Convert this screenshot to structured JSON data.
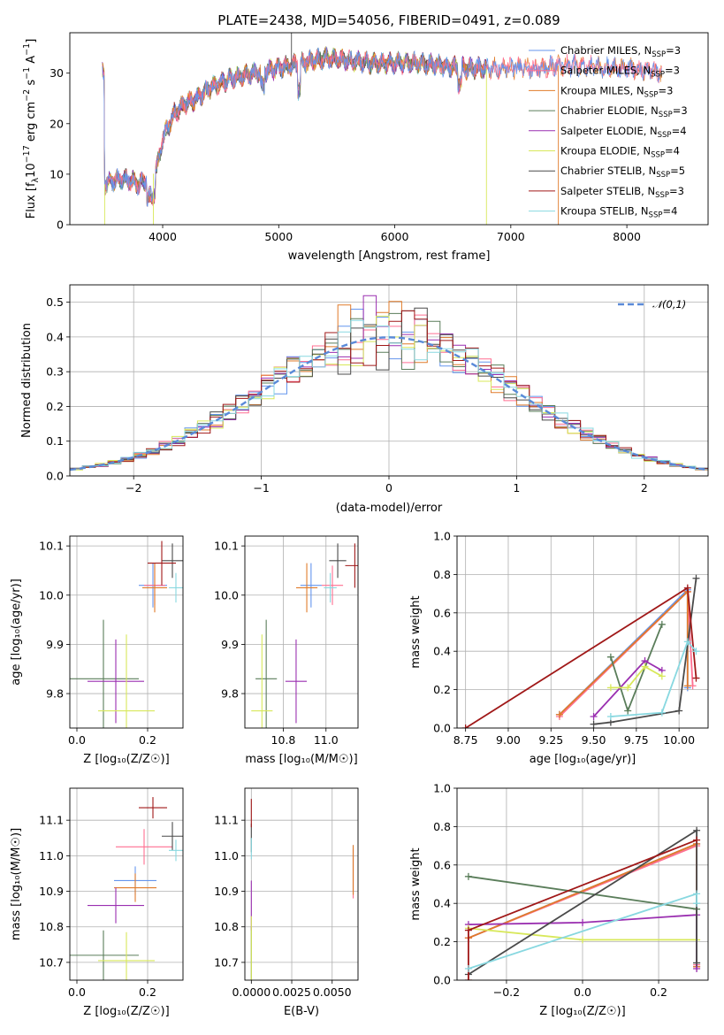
{
  "figure_title": "PLATE=2438, MJD=54056, FIBERID=0491, z=0.089",
  "colors": {
    "Chabrier MILES": "#6495ed",
    "Salpeter MILES": "#ff6f91",
    "Kroupa MILES": "#e07b2a",
    "Chabrier ELODIE": "#5a7d5a",
    "Salpeter ELODIE": "#9a2fb0",
    "Kroupa ELODIE": "#d8e85a",
    "Chabrier STELIB": "#4a4a4a",
    "Salpeter STELIB": "#a01818",
    "Kroupa STELIB": "#88d8e0"
  },
  "chart_data": [
    {
      "id": "spectrum",
      "type": "line",
      "title": "PLATE=2438, MJD=54056, FIBERID=0491, z=0.089",
      "xlabel": "wavelength [Angstrom, rest frame]",
      "ylabel": "Flux [f_λ 10^-17 erg cm^-2 s^-1 A^-1]",
      "xlim": [
        3200,
        8700
      ],
      "ylim": [
        0,
        38
      ],
      "xticks": [
        4000,
        5000,
        6000,
        7000,
        8000
      ],
      "yticks": [
        0,
        10,
        20,
        30
      ],
      "grid": false,
      "legend_position": "right",
      "legend": [
        {
          "name": "Chabrier MILES",
          "label": "Chabrier MILES, N",
          "sub": "SSP",
          "n": "=3"
        },
        {
          "name": "Salpeter MILES",
          "label": "Salpeter MILES, N",
          "sub": "SSP",
          "n": "=3"
        },
        {
          "name": "Kroupa MILES",
          "label": "Kroupa MILES, N",
          "sub": "SSP",
          "n": "=3"
        },
        {
          "name": "Chabrier ELODIE",
          "label": "Chabrier ELODIE, N",
          "sub": "SSP",
          "n": "=3"
        },
        {
          "name": "Salpeter ELODIE",
          "label": "Salpeter ELODIE, N",
          "sub": "SSP",
          "n": "=4"
        },
        {
          "name": "Kroupa ELODIE",
          "label": "Kroupa ELODIE, N",
          "sub": "SSP",
          "n": "=4"
        },
        {
          "name": "Chabrier STELIB",
          "label": "Chabrier STELIB, N",
          "sub": "SSP",
          "n": "=5"
        },
        {
          "name": "Salpeter STELIB",
          "label": "Salpeter STELIB, N",
          "sub": "SSP",
          "n": "=3"
        },
        {
          "name": "Kroupa STELIB",
          "label": "Kroupa STELIB, N",
          "sub": "SSP",
          "n": "=4"
        }
      ],
      "continuum": [
        [
          3500,
          8
        ],
        [
          3600,
          9
        ],
        [
          3700,
          9
        ],
        [
          3800,
          8
        ],
        [
          3900,
          9.5
        ],
        [
          3950,
          11
        ],
        [
          4000,
          17
        ],
        [
          4100,
          22
        ],
        [
          4200,
          24
        ],
        [
          4300,
          25
        ],
        [
          4400,
          27
        ],
        [
          4500,
          28
        ],
        [
          4600,
          29
        ],
        [
          4700,
          29.5
        ],
        [
          4800,
          30
        ],
        [
          4900,
          30.5
        ],
        [
          5000,
          31
        ],
        [
          5200,
          32
        ],
        [
          5400,
          33
        ],
        [
          5600,
          32.5
        ],
        [
          5800,
          32
        ],
        [
          6000,
          32
        ],
        [
          6200,
          32
        ],
        [
          6400,
          31.5
        ],
        [
          6600,
          31
        ],
        [
          6800,
          31
        ],
        [
          7000,
          31
        ],
        [
          7200,
          31
        ],
        [
          7400,
          31.5
        ],
        [
          7600,
          31.5
        ],
        [
          7800,
          31
        ],
        [
          8000,
          31
        ],
        [
          8200,
          30.5
        ],
        [
          8300,
          30
        ]
      ],
      "spikes": [
        [
          3500,
          0
        ],
        [
          3920,
          0
        ],
        [
          5110,
          38
        ],
        [
          6790,
          0
        ],
        [
          7410,
          0
        ]
      ]
    },
    {
      "id": "residuals",
      "type": "histogram",
      "xlabel": "(data-model)/error",
      "ylabel": "Normed distribution",
      "xlim": [
        -2.5,
        2.5
      ],
      "ylim": [
        0,
        0.55
      ],
      "xticks": [
        -2,
        -1,
        0,
        1,
        2
      ],
      "yticks": [
        0.0,
        0.1,
        0.2,
        0.3,
        0.4,
        0.5
      ],
      "grid": true,
      "bin_width": 0.1,
      "legend": [
        {
          "name": "𝒩(0,1)",
          "style": "dashed",
          "color": "#5a8ad8"
        }
      ],
      "normal": {
        "mean": 0,
        "sigma": 1
      }
    },
    {
      "id": "age-vs-Z",
      "type": "errorbar",
      "xlabel": "Z [log10(Z/Z☉)]",
      "ylabel": "age [log10(age/yr)]",
      "xlim": [
        -0.02,
        0.3
      ],
      "ylim": [
        9.73,
        10.12
      ],
      "xticks": [
        0.0,
        0.2
      ],
      "yticks": [
        9.8,
        9.9,
        10.0,
        10.1
      ],
      "grid": true,
      "points": [
        {
          "series": "Chabrier MILES",
          "x": 0.215,
          "xerr": 0.04,
          "y": 10.02,
          "yerr": 0.045
        },
        {
          "series": "Salpeter MILES",
          "x": 0.22,
          "xerr": 0.03,
          "y": 10.02,
          "yerr": 0.04
        },
        {
          "series": "Kroupa MILES",
          "x": 0.22,
          "xerr": 0.035,
          "y": 10.015,
          "yerr": 0.05
        },
        {
          "series": "Chabrier ELODIE",
          "x": 0.075,
          "xerr": 0.1,
          "y": 9.83,
          "yerr": 0.12
        },
        {
          "series": "Salpeter ELODIE",
          "x": 0.11,
          "xerr": 0.08,
          "y": 9.825,
          "yerr": 0.085
        },
        {
          "series": "Kroupa ELODIE",
          "x": 0.14,
          "xerr": 0.08,
          "y": 9.765,
          "yerr": 0.155
        },
        {
          "series": "Chabrier STELIB",
          "x": 0.27,
          "xerr": 0.03,
          "y": 10.07,
          "yerr": 0.035
        },
        {
          "series": "Salpeter STELIB",
          "x": 0.24,
          "xerr": 0.04,
          "y": 10.065,
          "yerr": 0.045
        },
        {
          "series": "Kroupa STELIB",
          "x": 0.28,
          "xerr": 0.02,
          "y": 10.015,
          "yerr": 0.03
        }
      ]
    },
    {
      "id": "age-vs-mass",
      "type": "errorbar",
      "xlabel": "mass [log10(M/M☉)]",
      "ylabel": "",
      "xlim": [
        10.62,
        11.15
      ],
      "ylim": [
        9.73,
        10.12
      ],
      "xticks": [
        10.8,
        11.0
      ],
      "yticks": [
        9.8,
        9.9,
        10.0,
        10.1
      ],
      "grid": true,
      "points": [
        {
          "series": "Chabrier MILES",
          "x": 10.93,
          "xerr": 0.05,
          "y": 10.02,
          "yerr": 0.045
        },
        {
          "series": "Salpeter MILES",
          "x": 11.03,
          "xerr": 0.05,
          "y": 10.02,
          "yerr": 0.04
        },
        {
          "series": "Kroupa MILES",
          "x": 10.91,
          "xerr": 0.05,
          "y": 10.015,
          "yerr": 0.05
        },
        {
          "series": "Chabrier ELODIE",
          "x": 10.72,
          "xerr": 0.05,
          "y": 9.83,
          "yerr": 0.12
        },
        {
          "series": "Salpeter ELODIE",
          "x": 10.86,
          "xerr": 0.05,
          "y": 9.825,
          "yerr": 0.085
        },
        {
          "series": "Kroupa ELODIE",
          "x": 10.7,
          "xerr": 0.05,
          "y": 9.765,
          "yerr": 0.155
        },
        {
          "series": "Chabrier STELIB",
          "x": 11.055,
          "xerr": 0.04,
          "y": 10.07,
          "yerr": 0.035
        },
        {
          "series": "Salpeter STELIB",
          "x": 11.135,
          "xerr": 0.045,
          "y": 10.06,
          "yerr": 0.045
        },
        {
          "series": "Kroupa STELIB",
          "x": 11.02,
          "xerr": 0.03,
          "y": 10.015,
          "yerr": 0.03
        }
      ]
    },
    {
      "id": "weight-vs-age",
      "type": "line",
      "xlabel": "age [log10(age/yr)]",
      "ylabel": "mass weight",
      "xlim": [
        8.7,
        10.17
      ],
      "ylim": [
        0,
        1.0
      ],
      "xticks": [
        8.75,
        9.0,
        9.25,
        9.5,
        9.75,
        10.0
      ],
      "yticks": [
        0.0,
        0.2,
        0.4,
        0.6,
        0.8,
        1.0
      ],
      "grid": true,
      "series": [
        {
          "name": "Chabrier MILES",
          "points": [
            [
              9.3,
              0.07
            ],
            [
              10.05,
              0.72
            ],
            [
              10.05,
              0.21
            ]
          ]
        },
        {
          "name": "Salpeter MILES",
          "points": [
            [
              9.3,
              0.06
            ],
            [
              10.05,
              0.71
            ],
            [
              10.08,
              0.22
            ]
          ]
        },
        {
          "name": "Kroupa MILES",
          "points": [
            [
              9.3,
              0.07
            ],
            [
              10.05,
              0.71
            ],
            [
              10.05,
              0.22
            ]
          ]
        },
        {
          "name": "Chabrier ELODIE",
          "points": [
            [
              9.6,
              0.37
            ],
            [
              9.7,
              0.09
            ],
            [
              9.9,
              0.54
            ]
          ]
        },
        {
          "name": "Salpeter ELODIE",
          "points": [
            [
              9.5,
              0.06
            ],
            [
              9.8,
              0.35
            ],
            [
              9.9,
              0.3
            ]
          ]
        },
        {
          "name": "Kroupa ELODIE",
          "points": [
            [
              9.6,
              0.21
            ],
            [
              9.7,
              0.21
            ],
            [
              9.8,
              0.32
            ],
            [
              9.9,
              0.27
            ]
          ]
        },
        {
          "name": "Chabrier STELIB",
          "points": [
            [
              9.5,
              0.02
            ],
            [
              9.6,
              0.03
            ],
            [
              10.0,
              0.09
            ],
            [
              10.1,
              0.78
            ]
          ]
        },
        {
          "name": "Salpeter STELIB",
          "points": [
            [
              8.75,
              0.0
            ],
            [
              10.05,
              0.73
            ],
            [
              10.1,
              0.26
            ]
          ]
        },
        {
          "name": "Kroupa STELIB",
          "points": [
            [
              9.6,
              0.06
            ],
            [
              9.9,
              0.08
            ],
            [
              10.05,
              0.45
            ],
            [
              10.1,
              0.4
            ]
          ]
        }
      ]
    },
    {
      "id": "mass-vs-Z",
      "type": "errorbar",
      "xlabel": "Z [log10(Z/Z☉)]",
      "ylabel": "mass [log10(M/M☉)]",
      "xlim": [
        -0.02,
        0.3
      ],
      "ylim": [
        10.65,
        11.19
      ],
      "xticks": [
        0.0,
        0.2
      ],
      "yticks": [
        10.7,
        10.8,
        10.9,
        11.0,
        11.1
      ],
      "grid": true,
      "points": [
        {
          "series": "Chabrier MILES",
          "x": 0.165,
          "xerr": 0.06,
          "y": 10.93,
          "yerr": 0.04
        },
        {
          "series": "Salpeter MILES",
          "x": 0.19,
          "xerr": 0.08,
          "y": 11.025,
          "yerr": 0.05
        },
        {
          "series": "Kroupa MILES",
          "x": 0.165,
          "xerr": 0.06,
          "y": 10.91,
          "yerr": 0.04
        },
        {
          "series": "Chabrier ELODIE",
          "x": 0.075,
          "xerr": 0.1,
          "y": 10.72,
          "yerr": 0.07
        },
        {
          "series": "Salpeter ELODIE",
          "x": 0.11,
          "xerr": 0.08,
          "y": 10.86,
          "yerr": 0.05
        },
        {
          "series": "Kroupa ELODIE",
          "x": 0.14,
          "xerr": 0.08,
          "y": 10.705,
          "yerr": 0.08
        },
        {
          "series": "Chabrier STELIB",
          "x": 0.27,
          "xerr": 0.03,
          "y": 11.055,
          "yerr": 0.04
        },
        {
          "series": "Salpeter STELIB",
          "x": 0.215,
          "xerr": 0.04,
          "y": 11.135,
          "yerr": 0.03
        },
        {
          "series": "Kroupa STELIB",
          "x": 0.28,
          "xerr": 0.02,
          "y": 11.015,
          "yerr": 0.03
        }
      ]
    },
    {
      "id": "mass-vs-ebv",
      "type": "errorbar",
      "xlabel": "E(B-V)",
      "ylabel": "",
      "xlim": [
        -0.0004,
        0.0066
      ],
      "ylim": [
        10.65,
        11.19
      ],
      "xticks": [
        0.0,
        0.0025,
        0.005
      ],
      "xticklabels": [
        "0.0000",
        "0.0025",
        "0.0050"
      ],
      "yticks": [
        10.7,
        10.8,
        10.9,
        11.0,
        11.1
      ],
      "grid": true,
      "points": [
        {
          "series": "Chabrier MILES",
          "x": 0.0063,
          "xerr": 0,
          "y": 10.96,
          "yerr": 0.07
        },
        {
          "series": "Salpeter MILES",
          "x": 0.0063,
          "xerr": 0,
          "y": 10.95,
          "yerr": 0.07
        },
        {
          "series": "Kroupa MILES",
          "x": 0.0063,
          "xerr": 0,
          "y": 10.96,
          "yerr": 0.07
        },
        {
          "series": "Chabrier ELODIE",
          "x": 0.0,
          "xerr": 0,
          "y": 10.72,
          "yerr": 0.08
        },
        {
          "series": "Salpeter ELODIE",
          "x": 0.0,
          "xerr": 0,
          "y": 10.86,
          "yerr": 0.07
        },
        {
          "series": "Kroupa ELODIE",
          "x": 0.0,
          "xerr": 0,
          "y": 10.74,
          "yerr": 0.09
        },
        {
          "series": "Chabrier STELIB",
          "x": 0.0,
          "xerr": 0,
          "y": 11.05,
          "yerr": 0.04
        },
        {
          "series": "Salpeter STELIB",
          "x": 0.0,
          "xerr": 0,
          "y": 11.12,
          "yerr": 0.04
        },
        {
          "series": "Kroupa STELIB",
          "x": 0.0,
          "xerr": 0,
          "y": 11.02,
          "yerr": 0.03
        }
      ]
    },
    {
      "id": "weight-vs-Z",
      "type": "line",
      "xlabel": "Z [log10(Z/Z☉)]",
      "ylabel": "mass weight",
      "xlim": [
        -0.33,
        0.33
      ],
      "ylim": [
        0,
        1.0
      ],
      "xticks": [
        -0.2,
        0.0,
        0.2
      ],
      "yticks": [
        0.0,
        0.2,
        0.4,
        0.6,
        0.8,
        1.0
      ],
      "grid": true,
      "series": [
        {
          "name": "Chabrier MILES",
          "points": [
            [
              -0.3,
              0.22
            ],
            [
              0.3,
              0.71
            ],
            [
              0.3,
              0.07
            ]
          ]
        },
        {
          "name": "Salpeter MILES",
          "points": [
            [
              -0.3,
              0.22
            ],
            [
              0.3,
              0.7
            ],
            [
              0.3,
              0.08
            ]
          ]
        },
        {
          "name": "Kroupa MILES",
          "points": [
            [
              -0.3,
              0.22
            ],
            [
              0.3,
              0.71
            ],
            [
              0.3,
              0.07
            ]
          ]
        },
        {
          "name": "Chabrier ELODIE",
          "points": [
            [
              -0.3,
              0.54
            ],
            [
              0.3,
              0.37
            ],
            [
              0.3,
              0.09
            ]
          ]
        },
        {
          "name": "Salpeter ELODIE",
          "points": [
            [
              -0.3,
              0.29
            ],
            [
              0.0,
              0.3
            ],
            [
              0.3,
              0.34
            ],
            [
              0.3,
              0.06
            ]
          ]
        },
        {
          "name": "Kroupa ELODIE",
          "points": [
            [
              -0.3,
              0.27
            ],
            [
              0.0,
              0.21
            ],
            [
              0.3,
              0.21
            ]
          ]
        },
        {
          "name": "Chabrier STELIB",
          "points": [
            [
              -0.3,
              0.03
            ],
            [
              0.3,
              0.78
            ],
            [
              0.3,
              0.09
            ]
          ]
        },
        {
          "name": "Salpeter STELIB",
          "points": [
            [
              -0.3,
              0.0
            ],
            [
              -0.3,
              0.26
            ],
            [
              0.3,
              0.73
            ]
          ]
        },
        {
          "name": "Kroupa STELIB",
          "points": [
            [
              -0.3,
              0.06
            ],
            [
              0.3,
              0.45
            ],
            [
              0.3,
              0.4
            ]
          ]
        }
      ]
    }
  ]
}
